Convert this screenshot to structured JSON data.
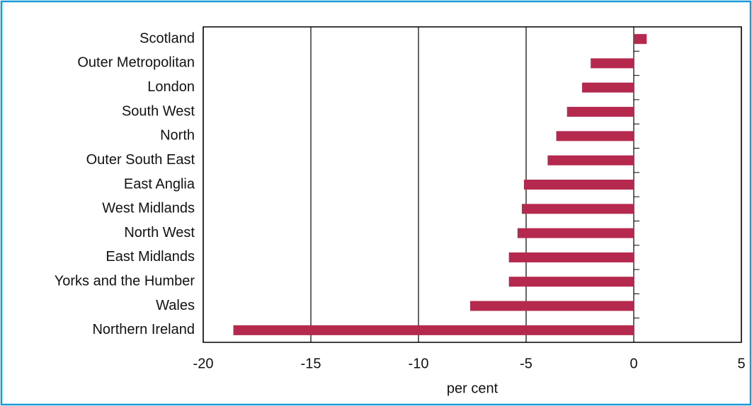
{
  "chart_data": {
    "type": "hbar",
    "categories": [
      "Scotland",
      "Outer Metropolitan",
      "London",
      "South West",
      "North",
      "Outer South East",
      "East Anglia",
      "West Midlands",
      "North West",
      "East Midlands",
      "Yorks and the Humber",
      "Wales",
      "Northern Ireland"
    ],
    "values": [
      0.6,
      -2.0,
      -2.4,
      -3.1,
      -3.6,
      -4.0,
      -5.1,
      -5.2,
      -5.4,
      -5.8,
      -5.8,
      -7.6,
      -18.6
    ],
    "color": "#b5294e",
    "xlabel": "per cent",
    "xlim": [
      -20,
      5
    ],
    "xticks": [
      -20,
      -15,
      -10,
      -5,
      0,
      5
    ],
    "grid": true
  }
}
